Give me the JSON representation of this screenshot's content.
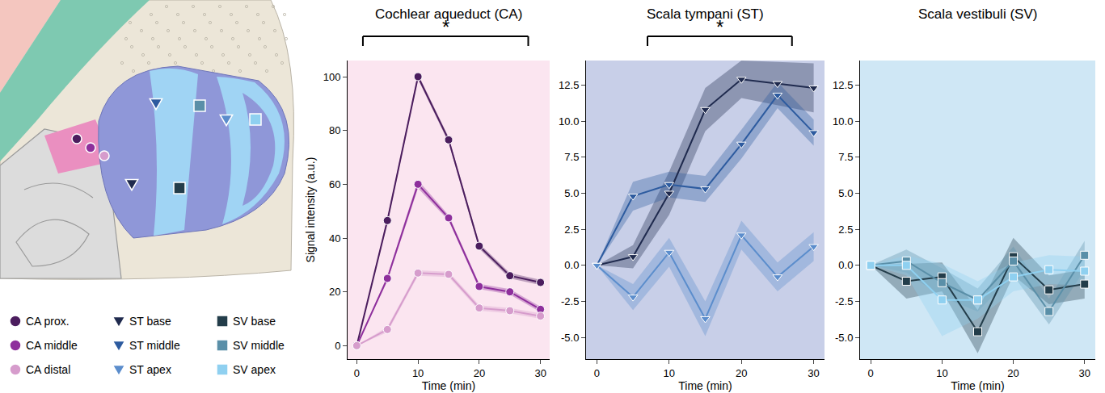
{
  "chart_data": [
    {
      "type": "line",
      "title": "Cochlear aqueduct (CA)",
      "xlabel": "Time (min)",
      "ylabel": "Signal intensity (a.u.)",
      "x": [
        0,
        5,
        10,
        15,
        20,
        25,
        30
      ],
      "xlim": [
        -1.5,
        31.5
      ],
      "xticks": [
        0,
        10,
        20,
        30
      ],
      "ylim": [
        -5,
        106
      ],
      "yticks": [
        0,
        20,
        40,
        60,
        80,
        100
      ],
      "grid": false,
      "legend": "bottom left",
      "annotations": [
        {
          "text": "*",
          "x0": 1,
          "x1": 28
        }
      ],
      "series": [
        {
          "name": "CA prox.",
          "color": "#4b1d5e",
          "marker": "circle",
          "values": [
            0,
            46.5,
            100,
            76.5,
            37,
            26,
            23.5
          ],
          "error": [
            0,
            1,
            1,
            1,
            1,
            1,
            1
          ]
        },
        {
          "name": "CA middle",
          "color": "#8e2f9c",
          "marker": "circle",
          "values": [
            0,
            25,
            60,
            47.5,
            22,
            20,
            13.5
          ],
          "error": [
            0,
            1,
            1.5,
            1,
            1,
            1,
            1
          ]
        },
        {
          "name": "CA distal",
          "color": "#d69ccc",
          "marker": "circle",
          "values": [
            0,
            6,
            27,
            26.5,
            14,
            13,
            11
          ],
          "error": [
            0,
            1,
            1,
            1,
            1,
            1,
            1
          ]
        }
      ]
    },
    {
      "type": "line",
      "title": "Scala tympani (ST)",
      "xlabel": "Time (min)",
      "x": [
        0,
        5,
        10,
        15,
        20,
        25,
        30
      ],
      "xlim": [
        -1.5,
        31.5
      ],
      "xticks": [
        0,
        10,
        20,
        30
      ],
      "ylim": [
        -6.5,
        14.2
      ],
      "yticks": [
        {
          "value": -5,
          "label": "-5.0"
        },
        -2.5,
        {
          "value": 0,
          "label": "0.0"
        },
        2.5,
        {
          "value": 5,
          "label": "5.0"
        },
        7.5,
        {
          "value": 10,
          "label": "10.0"
        },
        12.5
      ],
      "grid": false,
      "legend": "bottom left",
      "annotations": [
        {
          "text": "*",
          "x0": 7,
          "x1": 27
        }
      ],
      "series": [
        {
          "name": "ST base",
          "color": "#1f2a4e",
          "marker": "triangle-down",
          "values": [
            0,
            0.6,
            5,
            10.8,
            12.9,
            12.6,
            12.3
          ],
          "error": [
            0,
            0.8,
            1.5,
            1.5,
            1.3,
            1.5,
            1.7
          ]
        },
        {
          "name": "ST middle",
          "color": "#2d5b9f",
          "marker": "triangle-down",
          "values": [
            0,
            4.8,
            5.6,
            5.3,
            8.4,
            11.8,
            9.2
          ],
          "error": [
            0,
            1,
            0.9,
            0.9,
            1,
            0.9,
            0.9
          ]
        },
        {
          "name": "ST apex",
          "color": "#5b8dcc",
          "marker": "triangle-down",
          "values": [
            0,
            -2.2,
            0.9,
            -3.7,
            2.1,
            -0.8,
            1.3
          ],
          "error": [
            0,
            0.9,
            1,
            1.2,
            1,
            1,
            1
          ]
        }
      ]
    },
    {
      "type": "line",
      "title": "Scala vestibuli (SV)",
      "xlabel": "Time (min)",
      "x": [
        0,
        5,
        10,
        15,
        20,
        25,
        30
      ],
      "xlim": [
        -1.5,
        31.5
      ],
      "xticks": [
        0,
        10,
        20,
        30
      ],
      "ylim": [
        -6.5,
        14.2
      ],
      "yticks": [
        {
          "value": -5,
          "label": "-5.0"
        },
        -2.5,
        {
          "value": 0,
          "label": "0.0"
        },
        2.5,
        {
          "value": 5,
          "label": "5.0"
        },
        7.5,
        {
          "value": 10,
          "label": "10.0"
        },
        12.5
      ],
      "grid": false,
      "legend": "bottom left",
      "series": [
        {
          "name": "SV base",
          "color": "#233d4a",
          "marker": "square",
          "values": [
            0,
            -1.1,
            -0.8,
            -4.6,
            0.6,
            -1.7,
            -1.3
          ],
          "error": [
            0,
            1.2,
            1,
            1.5,
            1.3,
            1,
            1
          ]
        },
        {
          "name": "SV middle",
          "color": "#5a8fa8",
          "marker": "square",
          "values": [
            0,
            0.3,
            -1.2,
            -2.4,
            0.3,
            -3.2,
            0.7
          ],
          "error": [
            0,
            0.8,
            1,
            0.8,
            1,
            0.9,
            1
          ]
        },
        {
          "name": "SV apex",
          "color": "#8fd0f0",
          "marker": "square",
          "values": [
            0,
            0,
            -2.4,
            -2.4,
            -0.8,
            -0.3,
            -0.4
          ],
          "error": [
            0,
            0.7,
            2.5,
            1.3,
            1,
            1,
            1
          ]
        }
      ]
    }
  ]
}
